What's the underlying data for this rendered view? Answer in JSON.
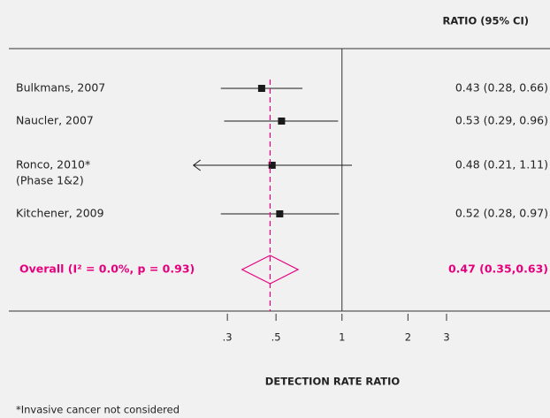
{
  "chart_data": {
    "type": "forest",
    "header": "RATIO  (95% CI)",
    "xlabel": "DETECTION RATE RATIO",
    "footnote": "*Invasive cancer not considered",
    "xscale": "log",
    "xlim": [
      0.2,
      3
    ],
    "xticks": [
      {
        "value": 0.3,
        "label": ".3"
      },
      {
        "value": 0.5,
        "label": ".5"
      },
      1,
      2,
      3
    ],
    "reference_line": 1,
    "color": "#1a1a1a",
    "overall_color": "#e6007e",
    "studies": [
      {
        "name": "Bulkmans, 2007",
        "ratio": 0.43,
        "lower": 0.28,
        "upper": 0.66,
        "ci_label": "0.43 (0.28, 0.66)"
      },
      {
        "name": "Naucler, 2007",
        "ratio": 0.53,
        "lower": 0.29,
        "upper": 0.96,
        "ci_label": "0.53 (0.29, 0.96)"
      },
      {
        "name": "Ronco, 2010*",
        "note": "(Phase 1&2)",
        "ratio": 0.48,
        "lower": 0.21,
        "upper": 1.11,
        "ci_label": "0.48 (0.21, 1.11)",
        "arrow_left": true
      },
      {
        "name": "Kitchener, 2009",
        "ratio": 0.52,
        "lower": 0.28,
        "upper": 0.97,
        "ci_label": "0.52 (0.28, 0.97)"
      }
    ],
    "overall": {
      "name": "Overall (I² = 0.0%, p = 0.93)",
      "ratio": 0.47,
      "lower": 0.35,
      "upper": 0.63,
      "ci_label": "0.47 (0.35,0.63)"
    }
  }
}
